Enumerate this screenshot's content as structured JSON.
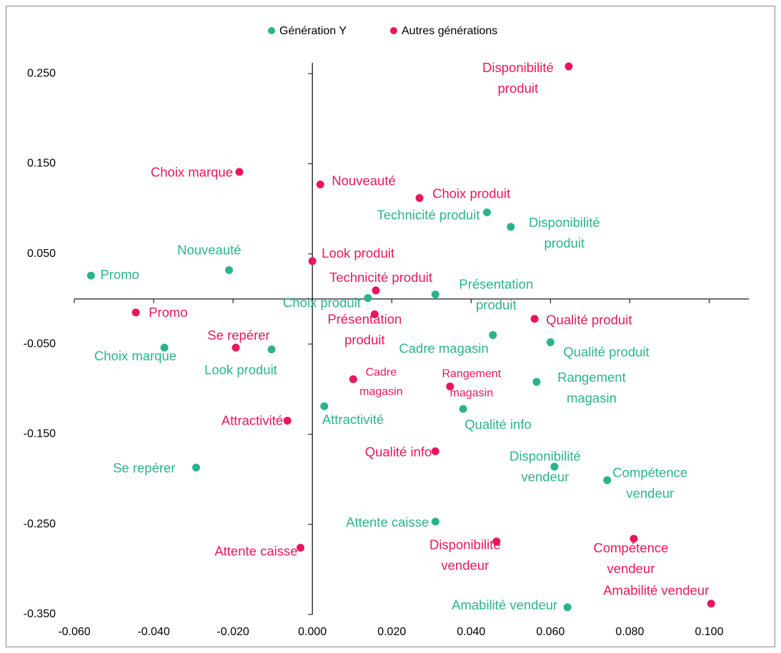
{
  "chart_data": {
    "type": "scatter",
    "xlim": [
      -0.06,
      0.11
    ],
    "ylim": [
      -0.35,
      0.262
    ],
    "xticks": [
      {
        "value": -0.06,
        "label": "-0.060"
      },
      {
        "value": -0.04,
        "label": "-0.040"
      },
      {
        "value": -0.02,
        "label": "-0.020"
      },
      {
        "value": 0,
        "label": "0.000"
      },
      {
        "value": 0.02,
        "label": "0.020"
      },
      {
        "value": 0.04,
        "label": "0.040"
      },
      {
        "value": 0.06,
        "label": "0.060"
      },
      {
        "value": 0.08,
        "label": "0.080"
      },
      {
        "value": 0.1,
        "label": "0.100"
      }
    ],
    "yticks": [
      {
        "value": 0.25,
        "label": "0.250"
      },
      {
        "value": 0.15,
        "label": "0.150"
      },
      {
        "value": 0.05,
        "label": "0.050"
      },
      {
        "value": -0.05,
        "label": "-0.050"
      },
      {
        "value": -0.15,
        "label": "-0.150"
      },
      {
        "value": -0.25,
        "label": "-0.250"
      },
      {
        "value": -0.35,
        "label": "-0.350"
      }
    ],
    "series": [
      {
        "name": "Génération Y",
        "color": "#2bb38e",
        "x": [
          -0.0558,
          -0.021,
          -0.0373,
          -0.0103,
          -0.0293,
          0.014,
          0.044,
          0.05,
          0.031,
          0.0455,
          0.06,
          0.0565,
          0.038,
          0.003,
          0.061,
          0.0743,
          0.031,
          0.0643
        ],
        "values": [
          0.026,
          0.032,
          -0.054,
          -0.056,
          -0.187,
          0.001,
          0.096,
          0.08,
          0.005,
          -0.04,
          -0.048,
          -0.092,
          -0.122,
          -0.119,
          -0.186,
          -0.201,
          -0.247,
          -0.342
        ],
        "labels": [
          [
            "Promo"
          ],
          [
            "Nouveauté"
          ],
          [
            "Choix marque"
          ],
          [
            "Look produit"
          ],
          [
            "Se repérer"
          ],
          [
            "Choix produit"
          ],
          [
            "Technicité produit"
          ],
          [
            "Disponibilité",
            "produit"
          ],
          [
            "Présentation",
            "produit"
          ],
          [
            "Cadre magasin"
          ],
          [
            "Qualité produit"
          ],
          [
            "Rangement",
            "magasin"
          ],
          [
            "Qualité info"
          ],
          [
            "Attractivité"
          ],
          [
            "Disponibilité",
            "vendeur"
          ],
          [
            "Compétence",
            "vendeur"
          ],
          [
            "Attente caisse"
          ],
          [
            "Amabilité vendeur"
          ]
        ]
      },
      {
        "name": "Autres générations",
        "color": "#e8175d",
        "x": [
          0.0646,
          -0.0184,
          0.002,
          0.027,
          0.0,
          0.016,
          -0.0445,
          0.0157,
          0.056,
          -0.0193,
          0.0103,
          0.0347,
          -0.0063,
          0.031,
          0.0464,
          0.081,
          -0.003,
          0.1005
        ],
        "values": [
          0.258,
          0.141,
          0.127,
          0.112,
          0.042,
          0.0095,
          -0.015,
          -0.017,
          -0.022,
          -0.054,
          -0.089,
          -0.097,
          -0.135,
          -0.169,
          -0.269,
          -0.266,
          -0.276,
          -0.338
        ],
        "labels": [
          [
            "Disponibilité",
            "produit"
          ],
          [
            "Choix marque"
          ],
          [
            "Nouveauté"
          ],
          [
            "Choix produit"
          ],
          [
            "Look produit"
          ],
          [
            "Technicité produit"
          ],
          [
            "Promo"
          ],
          [
            "Présentation",
            "produit"
          ],
          [
            "Qualité produit"
          ],
          [
            "Se repérer"
          ],
          [
            "Cadre",
            "magasin"
          ],
          [
            "Rangement",
            "magasin"
          ],
          [
            "Attractivité"
          ],
          [
            "Qualité info"
          ],
          [
            "Disponibilité",
            "vendeur"
          ],
          [
            "Compétence",
            "vendeur"
          ],
          [
            "Attente caisse"
          ],
          [
            "Amabilité vendeur"
          ]
        ]
      }
    ]
  }
}
